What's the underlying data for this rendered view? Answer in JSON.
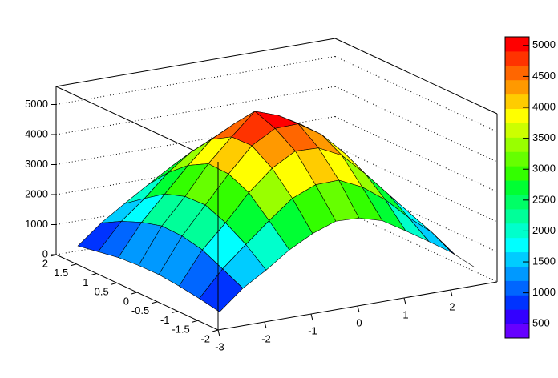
{
  "chart_data": {
    "type": "surface",
    "x": [
      -2.75,
      -2.25,
      -1.75,
      -1.25,
      -0.75,
      -0.25,
      0.25,
      0.75,
      1.25,
      1.75,
      2.25,
      2.75
    ],
    "y": [
      -1.75,
      -1.25,
      -0.75,
      -0.25,
      0.25,
      0.75,
      1.25,
      1.75
    ],
    "values": [
      [
        380,
        1030,
        1500,
        2040,
        2450,
        2730,
        2700,
        2480,
        2010,
        1520,
        1010,
        380
      ],
      [
        510,
        1360,
        2040,
        2700,
        3310,
        3630,
        3650,
        3290,
        2730,
        2010,
        1380,
        500
      ],
      [
        610,
        1680,
        2450,
        3320,
        4000,
        4440,
        4410,
        4030,
        3290,
        2470,
        1650,
        620
      ],
      [
        680,
        1830,
        2730,
        3630,
        4440,
        4880,
        4900,
        4410,
        3650,
        2700,
        1850,
        670
      ],
      [
        670,
        1850,
        2700,
        3660,
        4420,
        5140,
        4870,
        4430,
        3630,
        2730,
        1830,
        680
      ],
      [
        620,
        1660,
        2470,
        3290,
        4020,
        4420,
        4440,
        4000,
        3310,
        2450,
        1670,
        610
      ],
      [
        500,
        1380,
        2010,
        2730,
        3290,
        3650,
        3630,
        3310,
        2700,
        2040,
        1360,
        510
      ],
      [
        380,
        1010,
        1520,
        2010,
        2480,
        2700,
        2730,
        2450,
        2040,
        1500,
        1030,
        380
      ]
    ],
    "xlim": [
      -3,
      3
    ],
    "xticks": [
      -3,
      -2,
      -1,
      0,
      1,
      2
    ],
    "ylim": [
      -2,
      2
    ],
    "yticks": [
      -2,
      -1.5,
      -1,
      -0.5,
      0,
      0.5,
      1,
      1.5,
      2
    ],
    "zlim": [
      0,
      5600
    ],
    "zticks": [
      0,
      1000,
      2000,
      3000,
      4000,
      5000
    ],
    "grid": true,
    "palette": [
      "#6600ff",
      "#3300ff",
      "#0033ff",
      "#0066ff",
      "#0099ff",
      "#00ccff",
      "#00ffff",
      "#00ffcc",
      "#00ff99",
      "#00ff66",
      "#00ff33",
      "#33ff00",
      "#66ff00",
      "#99ff00",
      "#ccff00",
      "#ffff00",
      "#ffcc00",
      "#ff9900",
      "#ff6600",
      "#ff3300",
      "#ff0000"
    ],
    "palette_lim": [
      270,
      5140
    ],
    "palette_ticks": [
      500,
      1000,
      1500,
      2000,
      2500,
      3000,
      3500,
      4000,
      4500,
      5000
    ]
  }
}
